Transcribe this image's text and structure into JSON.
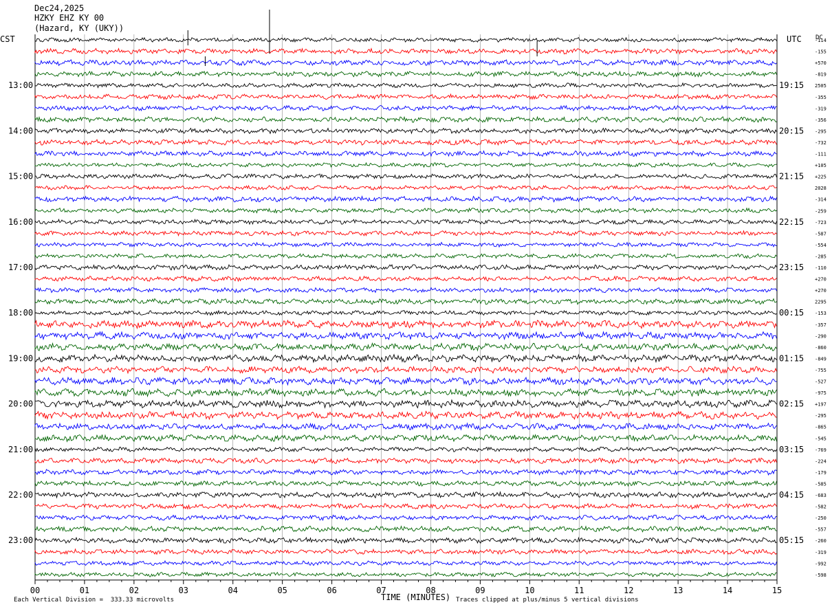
{
  "header": {
    "date": "Dec24,2025",
    "station": "HZKY EHZ KY 00",
    "location": "(Hazard, KY (UKY))"
  },
  "left_tz": "CST",
  "right_tz": "UTC",
  "dc_label": "DC",
  "footer": {
    "scale": "Each Vertical Division =  333.33 microvolts",
    "clip_note": "Traces clipped at plus/minus 5 vertical divisions"
  },
  "trace_colors": [
    "#000000",
    "#ff0000",
    "#0000ff",
    "#006400"
  ],
  "chart_data": {
    "type": "line",
    "xlabel": "TIME (MINUTES)",
    "xlim": [
      0,
      15
    ],
    "x_tick_labels": [
      "00",
      "01",
      "02",
      "03",
      "04",
      "05",
      "06",
      "07",
      "08",
      "09",
      "10",
      "11",
      "12",
      "13",
      "14",
      "15"
    ],
    "left_time_labels": [
      "13:00",
      "14:00",
      "15:00",
      "16:00",
      "17:00",
      "18:00",
      "19:00",
      "20:00",
      "21:00",
      "22:00",
      "23:00"
    ],
    "right_time_labels": [
      "19:15",
      "20:15",
      "21:15",
      "22:15",
      "23:15",
      "00:15",
      "01:15",
      "02:15",
      "03:15",
      "04:15",
      "05:15"
    ],
    "trace_count": 48,
    "dc_offsets": [
      "-114",
      "-155",
      "+570",
      "-819",
      "2505",
      "-355",
      "-319",
      "-356",
      "-295",
      "-732",
      "-111",
      "+105",
      "+225",
      "2028",
      "-314",
      "-259",
      "-723",
      "-587",
      "-554",
      "-285",
      "-110",
      "+270",
      "+270",
      "2295",
      "-153",
      "-357",
      "-290",
      "-860",
      "-849",
      "-755",
      "-527",
      "-975",
      "+197",
      "-295",
      "-865",
      "-545",
      "-769",
      "-224",
      "-179",
      "-585",
      "-683",
      "-582",
      "-250",
      "-557",
      "-260",
      "-319",
      "-992",
      "-598"
    ],
    "grid": true
  }
}
